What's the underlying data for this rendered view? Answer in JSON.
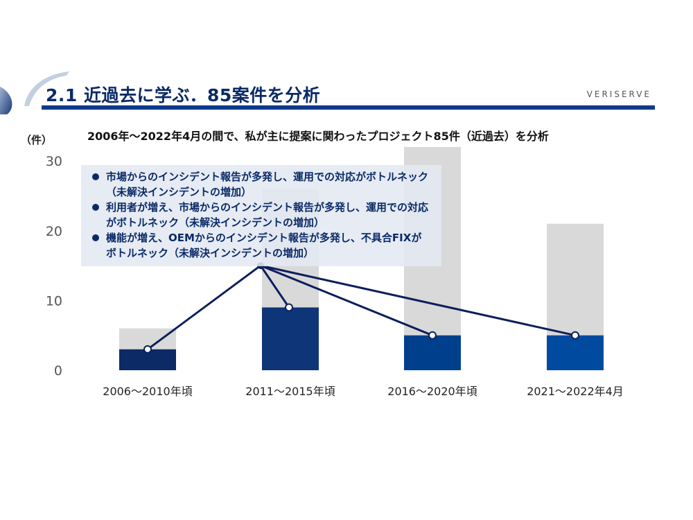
{
  "header": {
    "title": "2.1 近過去に学ぶ．85案件を分析",
    "brand": "VERISERVE"
  },
  "callout": {
    "items": [
      "市場からのインシデント報告が多発し、運用での対応がボトルネック（未解決インシデントの増加）",
      "利用者が増え、市場からのインシデント報告が多発し、運用での対応がボトルネック（未解決インシデントの増加）",
      "機能が増え、OEMからのインシデント報告が多発し、不具合FIXが ボトルネック（未解決インシデントの増加）"
    ]
  },
  "chart_data": {
    "type": "bar",
    "title": "",
    "subtitle": "2006年～2022年4月の間で、私が主に提案に関わったプロジェクト85件（近過去）を分析",
    "ylabel": "（件）",
    "xlabel": "",
    "ylim": [
      0,
      32
    ],
    "yticks": [
      0,
      10,
      20,
      30
    ],
    "grid": false,
    "categories": [
      "2006～2010年頃",
      "2011～2015年頃",
      "2016～2020年頃",
      "2021～2022年4月"
    ],
    "series": [
      {
        "values": [
          6,
          26,
          32,
          21
        ],
        "color": "#d9d9d9"
      },
      {
        "values": [
          3,
          9,
          5,
          5
        ],
        "colors": [
          "#0b2a66",
          "#0e3578",
          "#003f8c",
          "#004aa0"
        ]
      }
    ],
    "connector": {
      "hub": {
        "category_index": 1,
        "value": 15
      },
      "targets": [
        {
          "category_index": 0,
          "value": 3
        },
        {
          "category_index": 1,
          "value": 9
        },
        {
          "category_index": 2,
          "value": 5
        },
        {
          "category_index": 3,
          "value": 5
        }
      ],
      "color": "#0b1f5c"
    }
  }
}
